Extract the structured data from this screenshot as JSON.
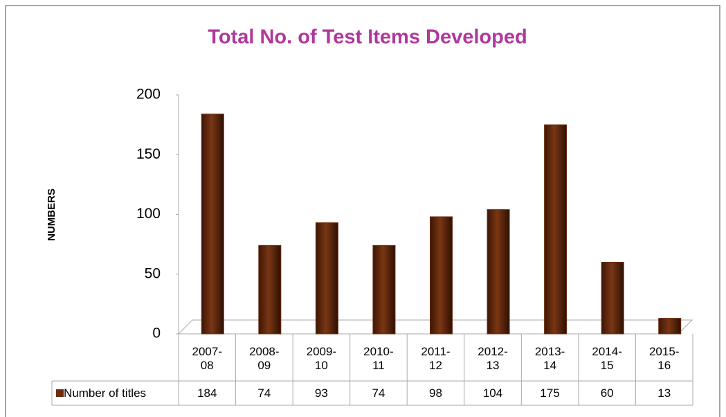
{
  "chart_data": {
    "type": "bar",
    "title": "Total No. of Test Items  Developed",
    "y_label": "NUMBERS",
    "categories": [
      "2007-08",
      "2008-09",
      "2009-10",
      "2010-11",
      "2011-12",
      "2012-13",
      "2013-14",
      "2014-15",
      "2015-16"
    ],
    "series": [
      {
        "name": "Number of titles",
        "color": "#6b2d0e",
        "values": [
          184,
          74,
          93,
          74,
          98,
          104,
          175,
          60,
          13
        ]
      }
    ],
    "ylim": [
      0,
      200
    ],
    "yticks": [
      0,
      50,
      100,
      150,
      200
    ],
    "grid": false
  }
}
